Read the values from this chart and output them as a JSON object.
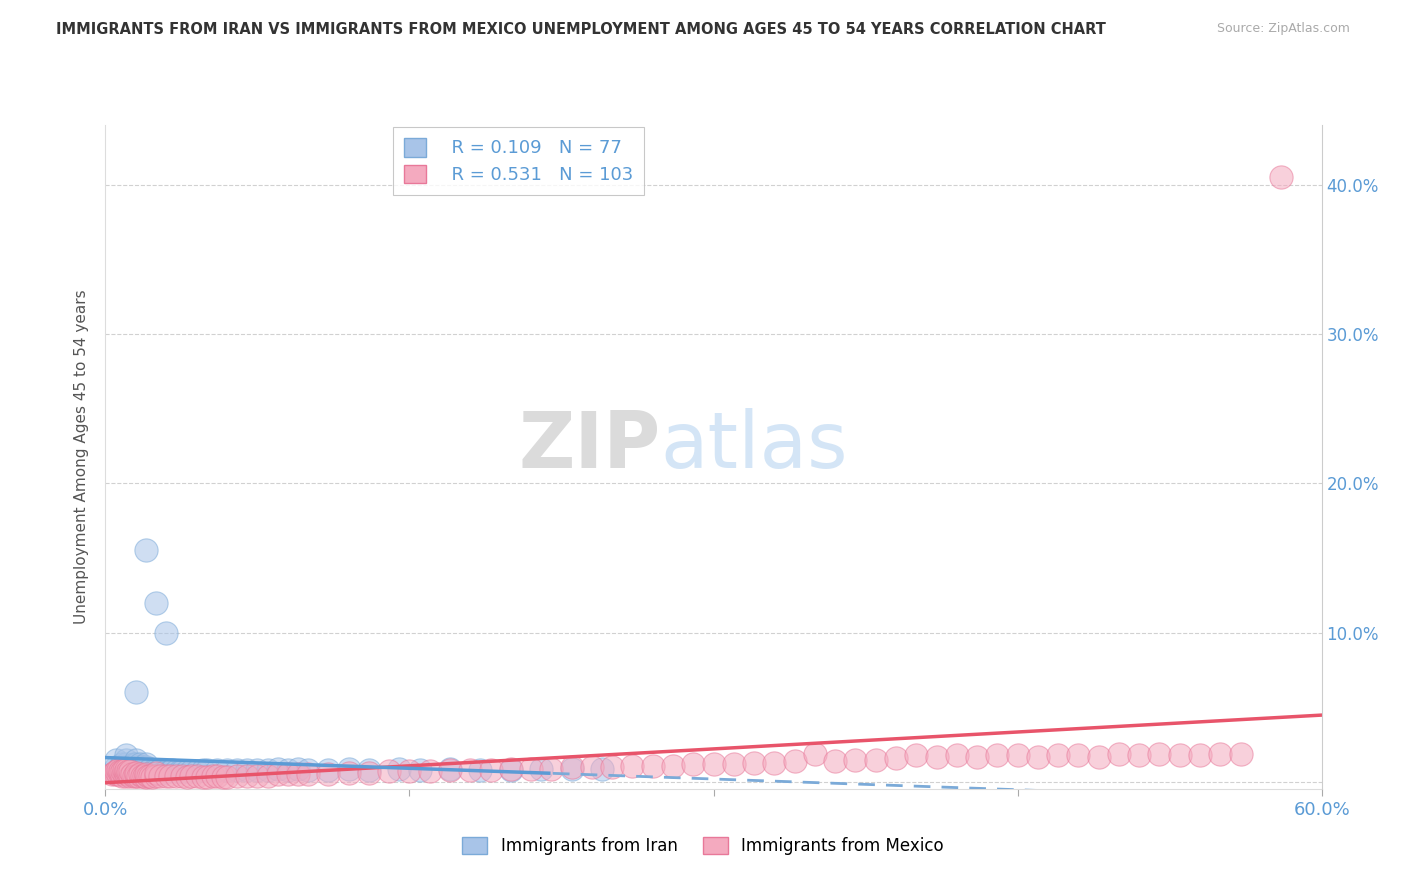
{
  "title": "IMMIGRANTS FROM IRAN VS IMMIGRANTS FROM MEXICO UNEMPLOYMENT AMONG AGES 45 TO 54 YEARS CORRELATION CHART",
  "source": "Source: ZipAtlas.com",
  "ylabel": "Unemployment Among Ages 45 to 54 years",
  "legend_iran": "Immigrants from Iran",
  "legend_mexico": "Immigrants from Mexico",
  "iran_R": "0.109",
  "iran_N": "77",
  "mexico_R": "0.531",
  "mexico_N": "103",
  "iran_color": "#A8C4E8",
  "iran_edge_color": "#7BAAD8",
  "iran_line_color": "#5B9BD5",
  "iran_dash_color": "#7BAAD8",
  "mexico_color": "#F4AABF",
  "mexico_edge_color": "#E87899",
  "mexico_line_color": "#E8546A",
  "right_axis_color": "#5B9BD5",
  "xlim": [
    0.0,
    0.6
  ],
  "ylim": [
    -0.005,
    0.44
  ],
  "iran_scatter_x": [
    0.005,
    0.005,
    0.007,
    0.008,
    0.008,
    0.009,
    0.01,
    0.01,
    0.01,
    0.01,
    0.01,
    0.01,
    0.012,
    0.012,
    0.013,
    0.014,
    0.014,
    0.015,
    0.015,
    0.015,
    0.015,
    0.016,
    0.016,
    0.017,
    0.017,
    0.018,
    0.018,
    0.019,
    0.02,
    0.02,
    0.02,
    0.02,
    0.021,
    0.022,
    0.023,
    0.024,
    0.025,
    0.025,
    0.026,
    0.027,
    0.028,
    0.03,
    0.032,
    0.033,
    0.035,
    0.037,
    0.038,
    0.04,
    0.042,
    0.045,
    0.048,
    0.05,
    0.055,
    0.06,
    0.065,
    0.07,
    0.075,
    0.08,
    0.085,
    0.09,
    0.095,
    0.1,
    0.11,
    0.12,
    0.13,
    0.145,
    0.155,
    0.17,
    0.185,
    0.2,
    0.215,
    0.23,
    0.245,
    0.015,
    0.02,
    0.025,
    0.03
  ],
  "iran_scatter_y": [
    0.01,
    0.015,
    0.01,
    0.008,
    0.012,
    0.01,
    0.005,
    0.008,
    0.01,
    0.012,
    0.015,
    0.018,
    0.008,
    0.01,
    0.006,
    0.008,
    0.012,
    0.007,
    0.009,
    0.012,
    0.015,
    0.008,
    0.01,
    0.007,
    0.012,
    0.008,
    0.01,
    0.007,
    0.005,
    0.008,
    0.01,
    0.012,
    0.007,
    0.009,
    0.006,
    0.008,
    0.006,
    0.008,
    0.007,
    0.008,
    0.006,
    0.007,
    0.007,
    0.008,
    0.007,
    0.007,
    0.007,
    0.007,
    0.007,
    0.007,
    0.008,
    0.008,
    0.008,
    0.008,
    0.008,
    0.008,
    0.008,
    0.008,
    0.009,
    0.008,
    0.009,
    0.008,
    0.008,
    0.009,
    0.008,
    0.009,
    0.008,
    0.009,
    0.008,
    0.008,
    0.009,
    0.009,
    0.009,
    0.06,
    0.155,
    0.12,
    0.1
  ],
  "mexico_scatter_x": [
    0.003,
    0.004,
    0.005,
    0.005,
    0.006,
    0.006,
    0.007,
    0.007,
    0.008,
    0.008,
    0.009,
    0.009,
    0.01,
    0.01,
    0.01,
    0.011,
    0.011,
    0.012,
    0.012,
    0.013,
    0.014,
    0.015,
    0.015,
    0.016,
    0.017,
    0.018,
    0.019,
    0.02,
    0.02,
    0.021,
    0.022,
    0.023,
    0.025,
    0.025,
    0.027,
    0.03,
    0.032,
    0.035,
    0.038,
    0.04,
    0.042,
    0.045,
    0.048,
    0.05,
    0.053,
    0.055,
    0.058,
    0.06,
    0.065,
    0.07,
    0.075,
    0.08,
    0.085,
    0.09,
    0.095,
    0.1,
    0.11,
    0.12,
    0.13,
    0.14,
    0.15,
    0.16,
    0.17,
    0.18,
    0.19,
    0.2,
    0.21,
    0.22,
    0.23,
    0.24,
    0.25,
    0.26,
    0.27,
    0.28,
    0.29,
    0.3,
    0.31,
    0.32,
    0.33,
    0.34,
    0.35,
    0.36,
    0.37,
    0.38,
    0.39,
    0.4,
    0.41,
    0.42,
    0.43,
    0.44,
    0.45,
    0.46,
    0.47,
    0.48,
    0.49,
    0.5,
    0.51,
    0.52,
    0.53,
    0.54,
    0.55,
    0.56,
    0.58
  ],
  "mexico_scatter_y": [
    0.005,
    0.006,
    0.005,
    0.007,
    0.005,
    0.008,
    0.005,
    0.007,
    0.004,
    0.007,
    0.005,
    0.008,
    0.004,
    0.006,
    0.008,
    0.005,
    0.007,
    0.004,
    0.007,
    0.005,
    0.004,
    0.004,
    0.006,
    0.004,
    0.005,
    0.004,
    0.004,
    0.003,
    0.005,
    0.004,
    0.004,
    0.003,
    0.004,
    0.006,
    0.004,
    0.004,
    0.004,
    0.004,
    0.004,
    0.003,
    0.004,
    0.004,
    0.003,
    0.003,
    0.004,
    0.004,
    0.003,
    0.003,
    0.004,
    0.004,
    0.004,
    0.004,
    0.005,
    0.005,
    0.005,
    0.005,
    0.005,
    0.006,
    0.006,
    0.007,
    0.007,
    0.007,
    0.008,
    0.008,
    0.008,
    0.009,
    0.009,
    0.009,
    0.01,
    0.01,
    0.01,
    0.011,
    0.011,
    0.011,
    0.012,
    0.012,
    0.012,
    0.013,
    0.013,
    0.014,
    0.019,
    0.014,
    0.015,
    0.015,
    0.016,
    0.018,
    0.017,
    0.018,
    0.017,
    0.018,
    0.018,
    0.017,
    0.018,
    0.018,
    0.017,
    0.019,
    0.018,
    0.019,
    0.018,
    0.018,
    0.019,
    0.019,
    0.405
  ]
}
